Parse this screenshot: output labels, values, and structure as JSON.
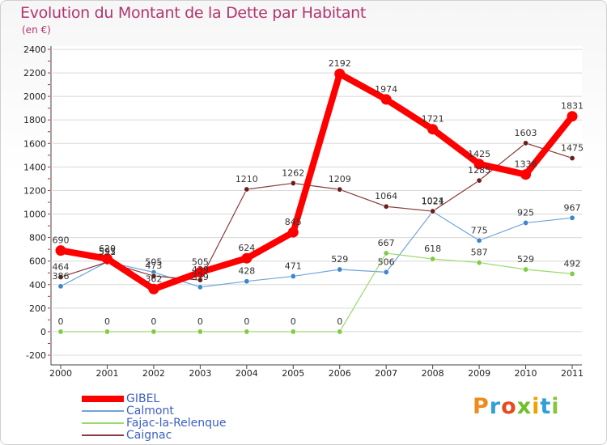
{
  "title": "Evolution du Montant de la Dette par Habitant",
  "subtitle": "(en €)",
  "brand": {
    "letters": [
      "P",
      "r",
      "o",
      "x",
      "i",
      "t",
      "i"
    ],
    "colors": [
      "#f08a1c",
      "#2f9fd8",
      "#e84b1d",
      "#6fbf2a",
      "#f0a000",
      "#2f9fd8",
      "#8ac43a"
    ]
  },
  "chart_data": {
    "type": "line",
    "title": "Evolution du Montant de la Dette par Habitant",
    "ylabel": "(en €)",
    "xlabel": "",
    "x": [
      "2000",
      "2001",
      "2002",
      "2003",
      "2004",
      "2005",
      "2006",
      "2007",
      "2008",
      "2009",
      "2010",
      "2011"
    ],
    "ylim": [
      -200,
      2400
    ],
    "yticks": [
      -200,
      0,
      200,
      400,
      600,
      800,
      1000,
      1200,
      1400,
      1600,
      1800,
      2000,
      2200,
      2400
    ],
    "grid": "horizontal",
    "legend_position": "bottom-left",
    "series": [
      {
        "name": "Calmont",
        "color": "#6fa3dc",
        "marker": "#3d86c8",
        "width": 1.2,
        "values": [
          386,
          593,
          505,
          379,
          428,
          471,
          529,
          506,
          1021,
          775,
          925,
          967
        ]
      },
      {
        "name": "Fajac-la-Relenque",
        "color": "#9bd96a",
        "marker": "#7fcc45",
        "width": 1.2,
        "values": [
          0,
          0,
          0,
          0,
          0,
          0,
          0,
          667,
          618,
          587,
          529,
          492
        ]
      },
      {
        "name": "Caignac",
        "color": "#8b3a3a",
        "marker": "#6b1e1e",
        "width": 1.2,
        "values": [
          464,
          591,
          473,
          439,
          1210,
          1262,
          1209,
          1064,
          1024,
          1285,
          1603,
          1475
        ]
      },
      {
        "name": "GIBEL",
        "color": "#ff0000",
        "marker": "#ff0000",
        "width": 8,
        "values": [
          690,
          620,
          362,
          505,
          624,
          845,
          2192,
          1974,
          1721,
          1425,
          1336,
          1831
        ]
      }
    ],
    "legend": [
      "GIBEL",
      "Calmont",
      "Fajac-la-Relenque",
      "Caignac"
    ]
  }
}
